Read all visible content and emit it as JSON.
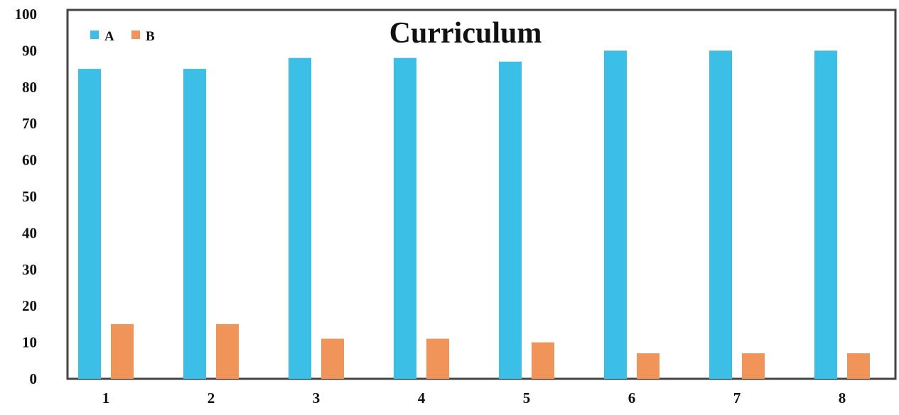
{
  "chart_data": {
    "type": "bar",
    "title": "Curriculum",
    "xlabel": "",
    "ylabel": "",
    "ylim": [
      0,
      100
    ],
    "yticks": [
      0,
      10,
      20,
      30,
      40,
      50,
      60,
      70,
      80,
      90,
      100
    ],
    "categories": [
      "1",
      "2",
      "3",
      "4",
      "5",
      "6",
      "7",
      "8"
    ],
    "series": [
      {
        "name": "A",
        "color": "#3cbfe6",
        "values": [
          85,
          85,
          88,
          88,
          87,
          90,
          90,
          90
        ]
      },
      {
        "name": "B",
        "color": "#f0945a",
        "values": [
          15,
          15,
          11,
          11,
          10,
          7,
          7,
          7
        ]
      }
    ],
    "legend": {
      "position": "top-left"
    },
    "grid": false
  }
}
